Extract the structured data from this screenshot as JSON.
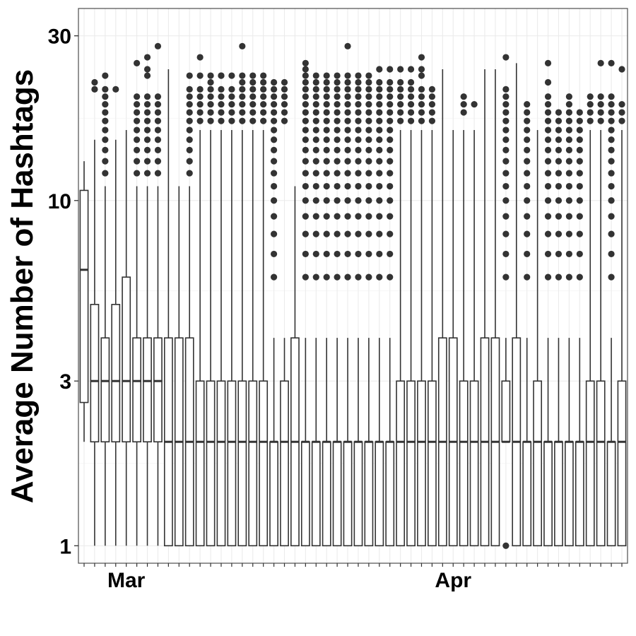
{
  "chart_data": {
    "type": "box",
    "title": "",
    "xlabel": "",
    "ylabel": "Average Number of Hashtags",
    "y_scale": "log10",
    "ylim": [
      0.89,
      36
    ],
    "y_ticks": [
      1,
      3,
      10,
      30
    ],
    "x_tick_labels": [
      {
        "label": "Mar",
        "date": "2020-03-01"
      },
      {
        "label": "Apr",
        "date": "2020-04-01"
      }
    ],
    "x_range": [
      "2020-02-26",
      "2020-04-17"
    ],
    "grid": true,
    "legend": "none",
    "colors": {
      "panel_border": "#4d4d4d",
      "grid": "#ebebeb",
      "box": "#333333",
      "outlier": "#333333"
    },
    "boxes": [
      {
        "date": "2020-02-26",
        "q1": 2.6,
        "median": 6.3,
        "q3": 10.7,
        "lower": 2,
        "upper": 13,
        "outliers": []
      },
      {
        "date": "2020-02-27",
        "q1": 2,
        "median": 3,
        "q3": 5,
        "lower": 1,
        "upper": 15,
        "outliers": [
          21,
          22
        ]
      },
      {
        "date": "2020-02-28",
        "q1": 2,
        "median": 3,
        "q3": 4,
        "lower": 1,
        "upper": 11,
        "outliers": [
          12,
          13,
          14,
          15,
          16,
          17,
          18,
          19,
          20,
          21,
          23
        ]
      },
      {
        "date": "2020-02-29",
        "q1": 2,
        "median": 3,
        "q3": 5,
        "lower": 1,
        "upper": 15,
        "outliers": [
          21
        ]
      },
      {
        "date": "2020-03-01",
        "q1": 2,
        "median": 3,
        "q3": 6,
        "lower": 1,
        "upper": 16,
        "outliers": []
      },
      {
        "date": "2020-03-02",
        "q1": 2,
        "median": 3,
        "q3": 4,
        "lower": 1,
        "upper": 11,
        "outliers": [
          12,
          13,
          14,
          15,
          16,
          17,
          18,
          19,
          20,
          25
        ]
      },
      {
        "date": "2020-03-03",
        "q1": 2,
        "median": 3,
        "q3": 4,
        "lower": 1,
        "upper": 11,
        "outliers": [
          12,
          13,
          14,
          15,
          16,
          17,
          18,
          19,
          20,
          23,
          24,
          26
        ]
      },
      {
        "date": "2020-03-04",
        "q1": 2,
        "median": 3,
        "q3": 4,
        "lower": 1,
        "upper": 11,
        "outliers": [
          12,
          13,
          14,
          15,
          16,
          17,
          18,
          19,
          20,
          28
        ]
      },
      {
        "date": "2020-03-05",
        "q1": 1,
        "median": 2,
        "q3": 4,
        "lower": 1,
        "upper": 24,
        "outliers": []
      },
      {
        "date": "2020-03-06",
        "q1": 1,
        "median": 2,
        "q3": 4,
        "lower": 1,
        "upper": 11,
        "outliers": []
      },
      {
        "date": "2020-03-07",
        "q1": 1,
        "median": 2,
        "q3": 4,
        "lower": 1,
        "upper": 11,
        "outliers": [
          12,
          13,
          14,
          15,
          16,
          17,
          18,
          19,
          20,
          21,
          23
        ]
      },
      {
        "date": "2020-03-08",
        "q1": 1,
        "median": 2,
        "q3": 3,
        "lower": 1,
        "upper": 16,
        "outliers": [
          17,
          18,
          19,
          20,
          21,
          23,
          26
        ]
      },
      {
        "date": "2020-03-09",
        "q1": 1,
        "median": 2,
        "q3": 3,
        "lower": 1,
        "upper": 16,
        "outliers": [
          17,
          18,
          19,
          20,
          21,
          22,
          23
        ]
      },
      {
        "date": "2020-03-10",
        "q1": 1,
        "median": 2,
        "q3": 3,
        "lower": 1,
        "upper": 16,
        "outliers": [
          17,
          18,
          19,
          20,
          21,
          23,
          23
        ]
      },
      {
        "date": "2020-03-11",
        "q1": 1,
        "median": 2,
        "q3": 3,
        "lower": 1,
        "upper": 16,
        "outliers": [
          17,
          18,
          19,
          20,
          21,
          23
        ]
      },
      {
        "date": "2020-03-12",
        "q1": 1,
        "median": 2,
        "q3": 3,
        "lower": 1,
        "upper": 16,
        "outliers": [
          17,
          18,
          19,
          20,
          21,
          22,
          23,
          28
        ]
      },
      {
        "date": "2020-03-13",
        "q1": 1,
        "median": 2,
        "q3": 3,
        "lower": 1,
        "upper": 16,
        "outliers": [
          17,
          18,
          19,
          20,
          21,
          22,
          23
        ]
      },
      {
        "date": "2020-03-14",
        "q1": 1,
        "median": 2,
        "q3": 3,
        "lower": 1,
        "upper": 16,
        "outliers": [
          17,
          18,
          19,
          20,
          21,
          22,
          23
        ]
      },
      {
        "date": "2020-03-15",
        "q1": 1,
        "median": 2,
        "q3": 2,
        "lower": 1,
        "upper": 4,
        "outliers": [
          6,
          7,
          8,
          9,
          10,
          11,
          12,
          13,
          14,
          15,
          16,
          17,
          18,
          19,
          20,
          21,
          22
        ]
      },
      {
        "date": "2020-03-16",
        "q1": 1,
        "median": 2,
        "q3": 3,
        "lower": 1,
        "upper": 4,
        "outliers": [
          17,
          18,
          19,
          20,
          21,
          22
        ]
      },
      {
        "date": "2020-03-17",
        "q1": 1,
        "median": 2,
        "q3": 4,
        "lower": 1,
        "upper": 11,
        "outliers": []
      },
      {
        "date": "2020-03-18",
        "q1": 1,
        "median": 2,
        "q3": 2,
        "lower": 1,
        "upper": 4,
        "outliers": [
          6,
          7,
          8,
          9,
          10,
          11,
          12,
          13,
          14,
          15,
          16,
          17,
          18,
          19,
          20,
          21,
          22,
          23,
          24,
          25
        ]
      },
      {
        "date": "2020-03-19",
        "q1": 1,
        "median": 2,
        "q3": 2,
        "lower": 1,
        "upper": 4,
        "outliers": [
          6,
          7,
          8,
          9,
          10,
          11,
          12,
          13,
          14,
          15,
          16,
          17,
          18,
          19,
          20,
          21,
          22,
          23
        ]
      },
      {
        "date": "2020-03-20",
        "q1": 1,
        "median": 2,
        "q3": 2,
        "lower": 1,
        "upper": 4,
        "outliers": [
          6,
          7,
          8,
          9,
          10,
          11,
          12,
          13,
          14,
          15,
          16,
          17,
          18,
          19,
          20,
          21,
          22,
          23
        ]
      },
      {
        "date": "2020-03-21",
        "q1": 1,
        "median": 2,
        "q3": 2,
        "lower": 1,
        "upper": 4,
        "outliers": [
          6,
          7,
          8,
          9,
          10,
          11,
          12,
          13,
          14,
          15,
          16,
          17,
          18,
          19,
          20,
          21,
          22,
          23
        ]
      },
      {
        "date": "2020-03-22",
        "q1": 1,
        "median": 2,
        "q3": 2,
        "lower": 1,
        "upper": 4,
        "outliers": [
          6,
          7,
          8,
          9,
          10,
          11,
          12,
          13,
          14,
          15,
          16,
          17,
          18,
          19,
          20,
          21,
          22,
          23,
          28
        ]
      },
      {
        "date": "2020-03-23",
        "q1": 1,
        "median": 2,
        "q3": 2,
        "lower": 1,
        "upper": 4,
        "outliers": [
          6,
          7,
          8,
          9,
          10,
          11,
          12,
          13,
          14,
          15,
          16,
          17,
          18,
          19,
          20,
          21,
          22,
          23
        ]
      },
      {
        "date": "2020-03-24",
        "q1": 1,
        "median": 2,
        "q3": 2,
        "lower": 1,
        "upper": 4,
        "outliers": [
          6,
          7,
          8,
          9,
          10,
          11,
          12,
          13,
          14,
          15,
          16,
          17,
          18,
          19,
          20,
          21,
          22,
          23
        ]
      },
      {
        "date": "2020-03-25",
        "q1": 1,
        "median": 2,
        "q3": 2,
        "lower": 1,
        "upper": 4,
        "outliers": [
          6,
          7,
          8,
          9,
          10,
          11,
          12,
          13,
          14,
          15,
          16,
          17,
          18,
          19,
          20,
          21,
          22,
          24
        ]
      },
      {
        "date": "2020-03-26",
        "q1": 1,
        "median": 2,
        "q3": 2,
        "lower": 1,
        "upper": 4,
        "outliers": [
          6,
          7,
          8,
          9,
          10,
          11,
          12,
          13,
          14,
          15,
          16,
          17,
          18,
          19,
          20,
          21,
          22,
          24
        ]
      },
      {
        "date": "2020-03-27",
        "q1": 1,
        "median": 2,
        "q3": 3,
        "lower": 1,
        "upper": 16,
        "outliers": [
          17,
          18,
          19,
          20,
          21,
          22,
          24
        ]
      },
      {
        "date": "2020-03-28",
        "q1": 1,
        "median": 2,
        "q3": 3,
        "lower": 1,
        "upper": 16,
        "outliers": [
          17,
          18,
          19,
          20,
          21,
          22,
          24
        ]
      },
      {
        "date": "2020-03-29",
        "q1": 1,
        "median": 2,
        "q3": 3,
        "lower": 1,
        "upper": 16,
        "outliers": [
          17,
          18,
          19,
          20,
          21,
          23,
          24,
          26
        ]
      },
      {
        "date": "2020-03-30",
        "q1": 1,
        "median": 2,
        "q3": 3,
        "lower": 1,
        "upper": 16,
        "outliers": [
          17,
          18,
          19,
          20,
          21
        ]
      },
      {
        "date": "2020-03-31",
        "q1": 1,
        "median": 2,
        "q3": 4,
        "lower": 1,
        "upper": 24,
        "outliers": []
      },
      {
        "date": "2020-04-01",
        "q1": 1,
        "median": 2,
        "q3": 4,
        "lower": 1,
        "upper": 16,
        "outliers": []
      },
      {
        "date": "2020-04-02",
        "q1": 1,
        "median": 2,
        "q3": 3,
        "lower": 1,
        "upper": 16,
        "outliers": [
          18,
          19,
          20
        ]
      },
      {
        "date": "2020-04-03",
        "q1": 1,
        "median": 2,
        "q3": 3,
        "lower": 1,
        "upper": 16,
        "outliers": [
          19
        ]
      },
      {
        "date": "2020-04-04",
        "q1": 1,
        "median": 2,
        "q3": 4,
        "lower": 1,
        "upper": 24,
        "outliers": []
      },
      {
        "date": "2020-04-05",
        "q1": 1,
        "median": 2,
        "q3": 4,
        "lower": 1,
        "upper": 24,
        "outliers": []
      },
      {
        "date": "2020-04-06",
        "q1": 2,
        "median": 2,
        "q3": 3,
        "lower": 2,
        "upper": 4,
        "outliers": [
          1,
          6,
          7,
          8,
          9,
          10,
          11,
          12,
          13,
          14,
          15,
          16,
          17,
          18,
          19,
          20,
          21,
          26
        ]
      },
      {
        "date": "2020-04-07",
        "q1": 1,
        "median": 2,
        "q3": 4,
        "lower": 1,
        "upper": 25,
        "outliers": []
      },
      {
        "date": "2020-04-08",
        "q1": 1,
        "median": 2,
        "q3": 2,
        "lower": 1,
        "upper": 4,
        "outliers": [
          6,
          7,
          8,
          9,
          10,
          11,
          12,
          13,
          14,
          15,
          16,
          17,
          18,
          19
        ]
      },
      {
        "date": "2020-04-09",
        "q1": 1,
        "median": 2,
        "q3": 3,
        "lower": 1,
        "upper": 16,
        "outliers": []
      },
      {
        "date": "2020-04-10",
        "q1": 1,
        "median": 2,
        "q3": 2,
        "lower": 1,
        "upper": 4,
        "outliers": [
          6,
          7,
          8,
          9,
          10,
          11,
          12,
          13,
          14,
          15,
          16,
          17,
          18,
          19,
          20,
          22,
          25
        ]
      },
      {
        "date": "2020-04-11",
        "q1": 1,
        "median": 2,
        "q3": 2,
        "lower": 1,
        "upper": 4,
        "outliers": [
          6,
          7,
          8,
          9,
          10,
          11,
          12,
          13,
          14,
          15,
          16,
          17,
          18
        ]
      },
      {
        "date": "2020-04-12",
        "q1": 1,
        "median": 2,
        "q3": 2,
        "lower": 1,
        "upper": 4,
        "outliers": [
          6,
          7,
          8,
          9,
          10,
          11,
          12,
          13,
          14,
          15,
          16,
          17,
          18,
          19,
          20
        ]
      },
      {
        "date": "2020-04-13",
        "q1": 1,
        "median": 2,
        "q3": 2,
        "lower": 1,
        "upper": 4,
        "outliers": [
          6,
          7,
          8,
          9,
          10,
          11,
          12,
          13,
          14,
          15,
          16,
          17,
          18
        ]
      },
      {
        "date": "2020-04-14",
        "q1": 1,
        "median": 2,
        "q3": 3,
        "lower": 1,
        "upper": 16,
        "outliers": [
          17,
          18,
          19,
          20
        ]
      },
      {
        "date": "2020-04-15",
        "q1": 1,
        "median": 2,
        "q3": 3,
        "lower": 1,
        "upper": 16,
        "outliers": [
          17,
          18,
          19,
          20,
          25
        ]
      },
      {
        "date": "2020-04-16",
        "q1": 1,
        "median": 2,
        "q3": 2,
        "lower": 1,
        "upper": 4,
        "outliers": [
          6,
          7,
          8,
          9,
          10,
          11,
          12,
          13,
          14,
          15,
          16,
          17,
          18,
          19,
          20,
          25
        ]
      },
      {
        "date": "2020-04-17",
        "q1": 1,
        "median": 2,
        "q3": 3,
        "lower": 1,
        "upper": 16,
        "outliers": [
          17,
          18,
          19,
          24
        ]
      }
    ]
  }
}
